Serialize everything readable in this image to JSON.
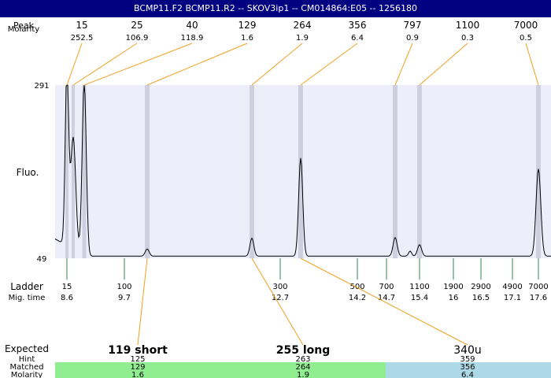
{
  "title": "BCMP11.F2  BCMP11.R2 -- SKOV3ip1 -- CM014864:E05 -- 1256180",
  "row_labels": {
    "peak": "Peak",
    "molarity": "Molarity",
    "fluo": "Fluo.",
    "ladder": "Ladder",
    "migtime": "Mig. time",
    "expected": "Expected",
    "hint": "Hint",
    "matched": "Matched",
    "molarity_bottom": "Molarity"
  },
  "colors": {
    "title_bg": "#000080",
    "plot_bg": "#eeeefb",
    "peak_band": "#cfcfe0",
    "connector": "#f0a020",
    "ladder_tick": "#2e8b57",
    "matched_green": "#90ee90",
    "matched_blue": "#add8e6"
  },
  "chart_data": {
    "type": "line",
    "y_axis": {
      "label": "Fluo.",
      "min": 49,
      "max": 291
    },
    "peaks": [
      {
        "size": "15",
        "molarity": "252.5"
      },
      {
        "size": "25",
        "molarity": "106.9"
      },
      {
        "size": "40",
        "molarity": "118.9"
      },
      {
        "size": "129",
        "molarity": "1.6"
      },
      {
        "size": "264",
        "molarity": "1.9"
      },
      {
        "size": "356",
        "molarity": "6.4"
      },
      {
        "size": "797",
        "molarity": "0.9"
      },
      {
        "size": "1100",
        "molarity": "0.3"
      },
      {
        "size": "7000",
        "molarity": "0.5"
      }
    ],
    "ladder": [
      {
        "size": "15",
        "mig_time": "8.6"
      },
      {
        "size": "100",
        "mig_time": "9.7"
      },
      {
        "size": "300",
        "mig_time": "12.7"
      },
      {
        "size": "500",
        "mig_time": "14.2"
      },
      {
        "size": "700",
        "mig_time": "14.7"
      },
      {
        "size": "1100",
        "mig_time": "15.4"
      },
      {
        "size": "1900",
        "mig_time": "16"
      },
      {
        "size": "2900",
        "mig_time": "16.5"
      },
      {
        "size": "4900",
        "mig_time": "17.1"
      },
      {
        "size": "7000",
        "mig_time": "17.6"
      }
    ],
    "expected": [
      {
        "label": "119 short",
        "hint": "125",
        "matched": "129",
        "molarity": "1.6"
      },
      {
        "label": "255 long",
        "hint": "263",
        "matched": "264",
        "molarity": "1.9"
      },
      {
        "label": "340u",
        "hint": "359",
        "matched": "356",
        "molarity": "6.4"
      }
    ]
  }
}
